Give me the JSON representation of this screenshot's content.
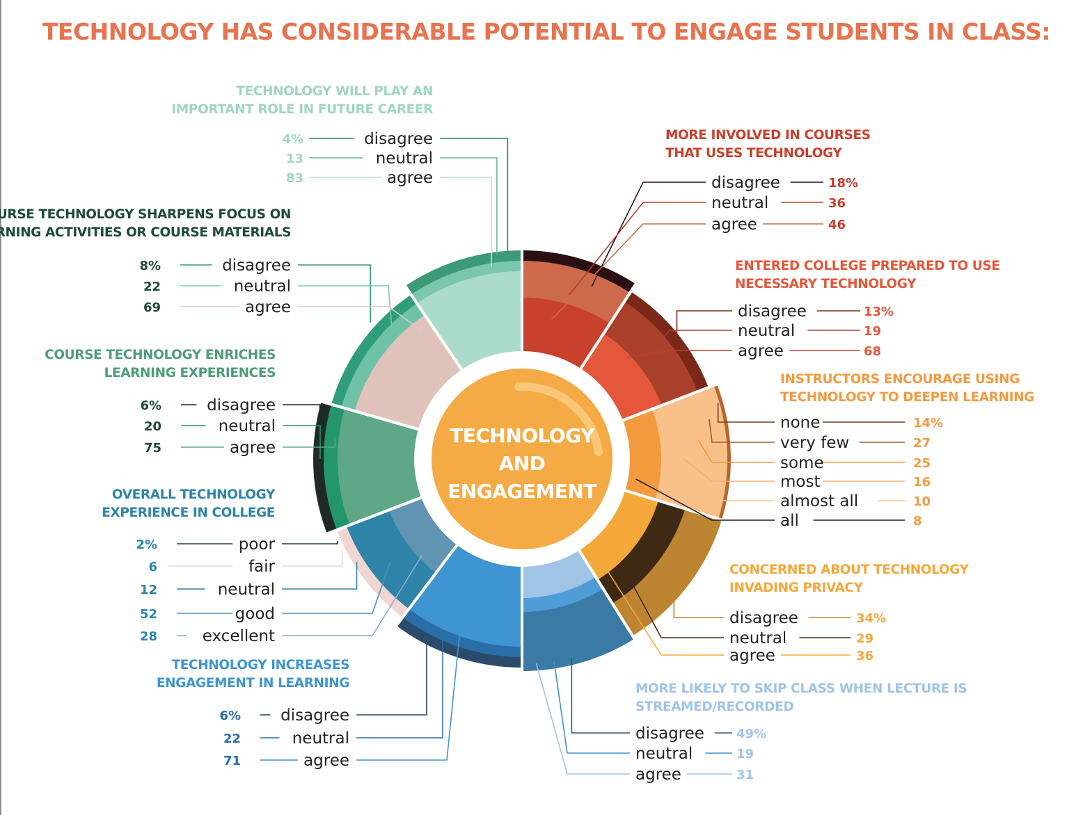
{
  "title": "TECHNOLOGY HAS CONSIDERABLE POTENTIAL TO ENGAGE STUDENTS IN CLASS:",
  "center": [
    "TECHNOLOGY",
    "AND",
    "ENGAGEMENT"
  ],
  "colors": {
    "title": "#e8734f",
    "center_fill": "#f5ab45",
    "center_ring": "#ffffff"
  },
  "chart_data": {
    "type": "pie",
    "layout": "radial sunburst of ten survey questions around a central circle",
    "segments": [
      {
        "question": [
          "MORE INVOLVED IN COURSES",
          "THAT USES TECHNOLOGY"
        ],
        "side": "right",
        "color": "#c9402c",
        "responses": [
          {
            "label": "disagree",
            "value": "18%"
          },
          {
            "label": "neutral",
            "value": "36"
          },
          {
            "label": "agree",
            "value": "46"
          }
        ]
      },
      {
        "question": [
          "ENTERED COLLEGE PREPARED TO USE",
          "NECESSARY TECHNOLOGY"
        ],
        "side": "right",
        "color": "#e4573a",
        "responses": [
          {
            "label": "disagree",
            "value": "13%"
          },
          {
            "label": "neutral",
            "value": "19"
          },
          {
            "label": "agree",
            "value": "68"
          }
        ]
      },
      {
        "question": [
          "INSTRUCTORS ENCOURAGE USING",
          "TECHNOLOGY TO DEEPEN LEARNING"
        ],
        "side": "right",
        "color": "#f39a3f",
        "responses": [
          {
            "label": "none",
            "value": "14%"
          },
          {
            "label": "very few",
            "value": "27"
          },
          {
            "label": "some",
            "value": "25"
          },
          {
            "label": "most",
            "value": "16"
          },
          {
            "label": "almost all",
            "value": "10"
          },
          {
            "label": "all",
            "value": "8"
          }
        ]
      },
      {
        "question": [
          "CONCERNED ABOUT TECHNOLOGY",
          "INVADING PRIVACY"
        ],
        "side": "right",
        "color": "#f5a83a",
        "responses": [
          {
            "label": "disagree",
            "value": "34%"
          },
          {
            "label": "neutral",
            "value": "29"
          },
          {
            "label": "agree",
            "value": "36"
          }
        ]
      },
      {
        "question": [
          "MORE LIKELY TO SKIP CLASS WHEN LECTURE IS",
          "STREAMED/RECORDED"
        ],
        "side": "right",
        "color": "#a0c4e6",
        "responses": [
          {
            "label": "disagree",
            "value": "49%"
          },
          {
            "label": "neutral",
            "value": "19"
          },
          {
            "label": "agree",
            "value": "31"
          }
        ]
      },
      {
        "question": [
          "TECHNOLOGY INCREASES",
          "ENGAGEMENT IN LEARNING"
        ],
        "side": "left",
        "color": "#3f95d1",
        "responses": [
          {
            "label": "disagree",
            "value": "6%"
          },
          {
            "label": "neutral",
            "value": "22"
          },
          {
            "label": "agree",
            "value": "71"
          }
        ]
      },
      {
        "question": [
          "OVERALL TECHNOLOGY",
          "EXPERIENCE IN COLLEGE"
        ],
        "side": "left",
        "color": "#2e84a8",
        "responses": [
          {
            "label": "poor",
            "value": "2%"
          },
          {
            "label": "fair",
            "value": "6"
          },
          {
            "label": "neutral",
            "value": "12"
          },
          {
            "label": "good",
            "value": "52"
          },
          {
            "label": "excellent",
            "value": "28"
          }
        ]
      },
      {
        "question": [
          "COURSE TECHNOLOGY ENRICHES",
          "LEARNING EXPERIENCES"
        ],
        "side": "left",
        "color": "#4f9c79",
        "responses": [
          {
            "label": "disagree",
            "value": "6%"
          },
          {
            "label": "neutral",
            "value": "20"
          },
          {
            "label": "agree",
            "value": "75"
          }
        ]
      },
      {
        "question": [
          "COURSE TECHNOLOGY SHARPENS FOCUS ON",
          "LEARNING ACTIVITIES OR COURSE MATERIALS"
        ],
        "side": "left",
        "color": "#1e4a3c",
        "responses": [
          {
            "label": "disagree",
            "value": "8%"
          },
          {
            "label": "neutral",
            "value": "22"
          },
          {
            "label": "agree",
            "value": "69"
          }
        ]
      },
      {
        "question": [
          "TECHNOLOGY WILL PLAY AN",
          "IMPORTANT ROLE IN FUTURE CAREER"
        ],
        "side": "left",
        "color": "#9fd6c4",
        "responses": [
          {
            "label": "disagree",
            "value": "4%"
          },
          {
            "label": "neutral",
            "value": "13"
          },
          {
            "label": "agree",
            "value": "83"
          }
        ]
      }
    ]
  }
}
